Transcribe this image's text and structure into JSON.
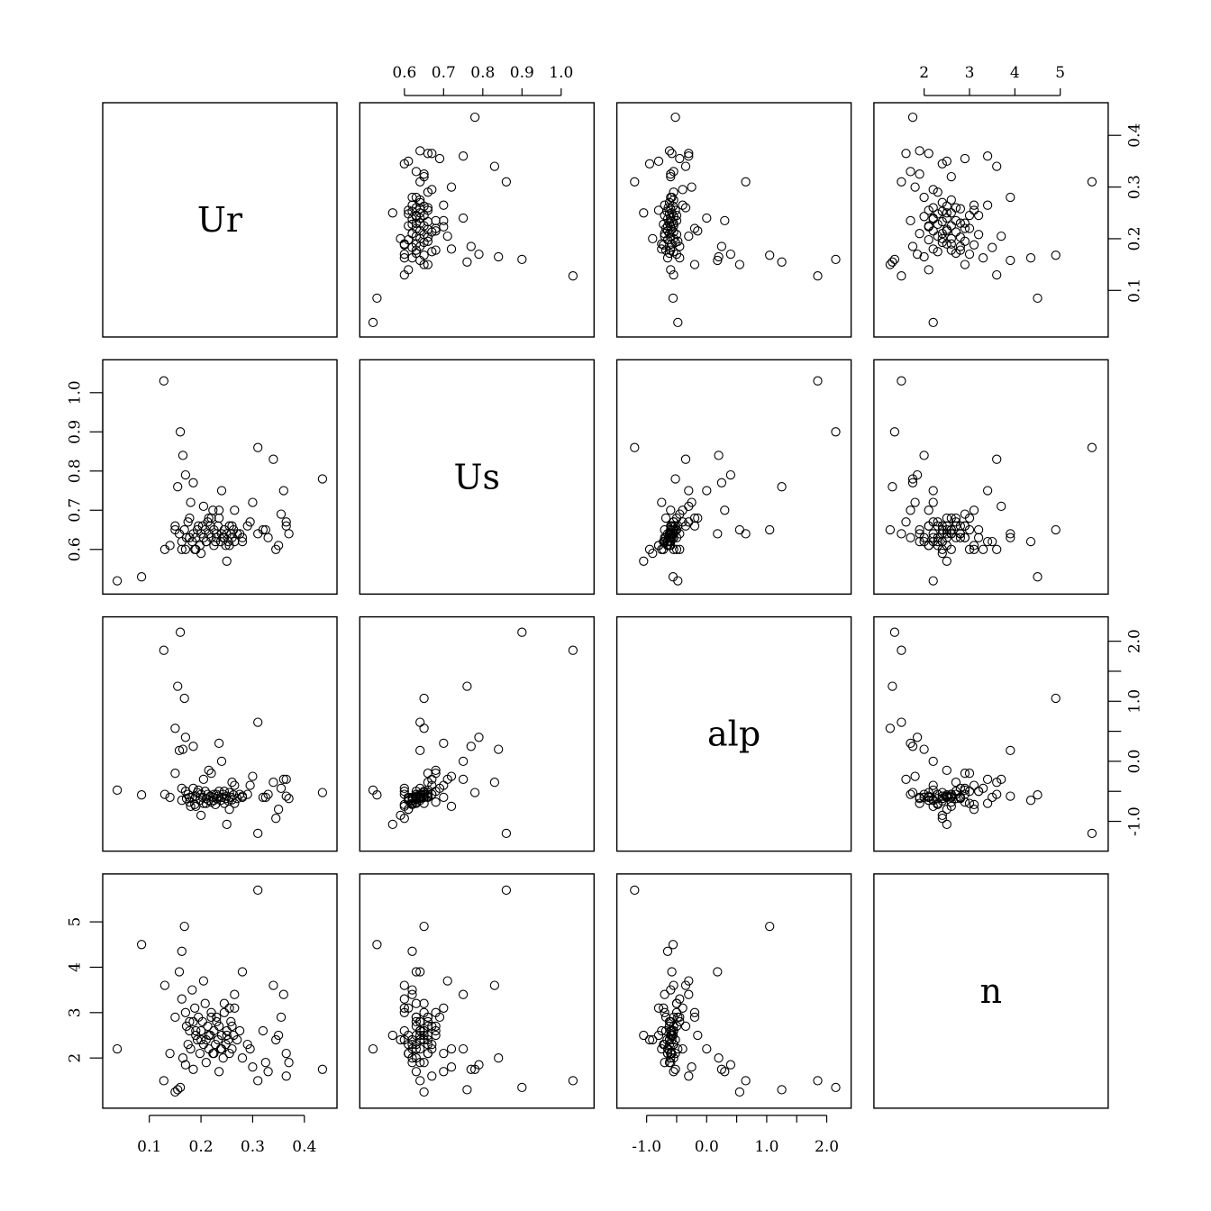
{
  "chart_data": {
    "type": "scatter",
    "title": "",
    "grid": false,
    "variables": [
      "Ur",
      "Us",
      "alp",
      "n"
    ],
    "ranges": {
      "Ur": [
        0.028,
        0.445
      ],
      "Us": [
        0.51,
        1.06
      ],
      "alp": [
        -1.34,
        2.25
      ],
      "n": [
        1.1,
        5.85
      ]
    },
    "ticks": {
      "Ur": {
        "values": [
          0.1,
          0.2,
          0.3,
          0.4
        ],
        "labels": [
          "0.1",
          "0.2",
          "0.3",
          "0.4"
        ]
      },
      "Us": {
        "values": [
          0.6,
          0.7,
          0.8,
          0.9,
          1.0
        ],
        "labels": [
          "0.6",
          "0.7",
          "0.8",
          "0.9",
          "1.0"
        ]
      },
      "alp": {
        "values": [
          -1.0,
          -0.5,
          0.0,
          0.5,
          1.0,
          1.5,
          2.0
        ],
        "labels": [
          "-1.0",
          "",
          "0.0",
          "",
          "1.0",
          "",
          "2.0"
        ]
      },
      "n": {
        "values": [
          2,
          3,
          4,
          5
        ],
        "labels": [
          "2",
          "3",
          "4",
          "5"
        ]
      }
    },
    "tick_positions": {
      "top": [
        "Us",
        "n"
      ],
      "bottom": [
        "Ur",
        "alp"
      ],
      "left": [
        "Us",
        "n"
      ],
      "right": [
        "Ur",
        "alp"
      ]
    },
    "observations": {
      "Ur": [
        0.038,
        0.085,
        0.128,
        0.13,
        0.14,
        0.15,
        0.155,
        0.158,
        0.16,
        0.163,
        0.165,
        0.168,
        0.17,
        0.172,
        0.175,
        0.178,
        0.18,
        0.183,
        0.185,
        0.188,
        0.19,
        0.193,
        0.195,
        0.198,
        0.2,
        0.203,
        0.205,
        0.208,
        0.21,
        0.213,
        0.215,
        0.218,
        0.22,
        0.223,
        0.225,
        0.228,
        0.23,
        0.233,
        0.235,
        0.238,
        0.24,
        0.243,
        0.245,
        0.248,
        0.25,
        0.253,
        0.255,
        0.258,
        0.26,
        0.263,
        0.265,
        0.27,
        0.28,
        0.29,
        0.3,
        0.31,
        0.32,
        0.33,
        0.34,
        0.35,
        0.355,
        0.36,
        0.365,
        0.37,
        0.435,
        0.31,
        0.15,
        0.163,
        0.178,
        0.205,
        0.22,
        0.24,
        0.265,
        0.2,
        0.225,
        0.25,
        0.23,
        0.21,
        0.19,
        0.245,
        0.26,
        0.28,
        0.17,
        0.185,
        0.215,
        0.235,
        0.255,
        0.275,
        0.295,
        0.325,
        0.345,
        0.365
      ],
      "Us": [
        0.52,
        0.53,
        1.03,
        0.6,
        0.61,
        0.66,
        0.76,
        0.64,
        0.9,
        0.62,
        0.84,
        0.65,
        0.6,
        0.63,
        0.67,
        0.68,
        0.72,
        0.62,
        0.64,
        0.6,
        0.63,
        0.65,
        0.66,
        0.61,
        0.64,
        0.66,
        0.63,
        0.65,
        0.62,
        0.67,
        0.64,
        0.66,
        0.63,
        0.7,
        0.65,
        0.62,
        0.64,
        0.66,
        0.68,
        0.62,
        0.64,
        0.63,
        0.65,
        0.61,
        0.64,
        0.62,
        0.66,
        0.64,
        0.63,
        0.65,
        0.7,
        0.64,
        0.63,
        0.66,
        0.72,
        0.86,
        0.65,
        0.63,
        0.83,
        0.61,
        0.69,
        0.75,
        0.66,
        0.64,
        0.78,
        0.64,
        0.65,
        0.6,
        0.63,
        0.71,
        0.68,
        0.75,
        0.62,
        0.59,
        0.61,
        0.57,
        0.63,
        0.62,
        0.6,
        0.63,
        0.66,
        0.62,
        0.79,
        0.77,
        0.68,
        0.7,
        0.61,
        0.64,
        0.67,
        0.65,
        0.6,
        0.67
      ],
      "alp": [
        -0.48,
        -0.56,
        1.85,
        -0.55,
        -0.6,
        -0.2,
        1.25,
        0.18,
        2.15,
        -0.65,
        0.2,
        1.05,
        -0.5,
        -0.62,
        -0.55,
        -0.68,
        -0.75,
        -0.6,
        -0.45,
        -0.72,
        -0.58,
        -0.52,
        -0.48,
        -0.65,
        -0.55,
        -0.6,
        -0.7,
        -0.5,
        -0.62,
        -0.55,
        -0.65,
        -0.58,
        -0.68,
        -0.6,
        -0.55,
        -0.72,
        -0.62,
        -0.58,
        -0.5,
        -0.65,
        -0.6,
        -0.55,
        -0.7,
        -0.62,
        -0.58,
        -0.66,
        -0.52,
        -0.6,
        -0.64,
        -0.56,
        -0.4,
        -0.62,
        -0.58,
        -0.55,
        -0.25,
        -1.2,
        -0.6,
        -0.55,
        -0.35,
        -0.8,
        -0.45,
        -0.3,
        -0.58,
        -0.62,
        -0.52,
        0.65,
        0.55,
        -0.45,
        -0.6,
        -0.3,
        -0.2,
        0.0,
        -0.7,
        -0.9,
        -0.65,
        -1.05,
        -0.55,
        -0.7,
        -0.75,
        -0.5,
        -0.35,
        -0.6,
        0.4,
        0.25,
        -0.15,
        0.3,
        -0.8,
        -0.55,
        -0.4,
        -0.6,
        -0.95,
        -0.3
      ],
      "n": [
        2.2,
        4.5,
        1.5,
        3.6,
        2.1,
        2.9,
        1.3,
        3.9,
        1.35,
        4.35,
        2.0,
        4.9,
        3.0,
        2.7,
        2.3,
        2.6,
        2.2,
        3.5,
        2.8,
        3.1,
        2.5,
        2.4,
        2.9,
        2.1,
        2.6,
        2.8,
        2.3,
        3.2,
        2.4,
        2.7,
        2.2,
        2.5,
        2.9,
        2.1,
        2.6,
        2.3,
        2.8,
        2.4,
        2.7,
        2.2,
        2.5,
        2.0,
        3.0,
        2.3,
        2.6,
        2.4,
        2.1,
        2.8,
        2.2,
        2.5,
        3.1,
        2.4,
        3.9,
        2.3,
        1.8,
        5.7,
        2.6,
        1.7,
        3.6,
        2.5,
        2.9,
        3.4,
        2.1,
        1.9,
        1.75,
        1.5,
        1.25,
        3.3,
        2.8,
        3.7,
        3.0,
        2.2,
        3.4,
        2.4,
        2.1,
        2.5,
        2.9,
        1.9,
        2.6,
        3.2,
        2.7,
        2.0,
        1.85,
        1.75,
        2.5,
        1.7,
        3.1,
        2.6,
        2.2,
        1.9,
        2.4,
        1.6
      ]
    }
  }
}
